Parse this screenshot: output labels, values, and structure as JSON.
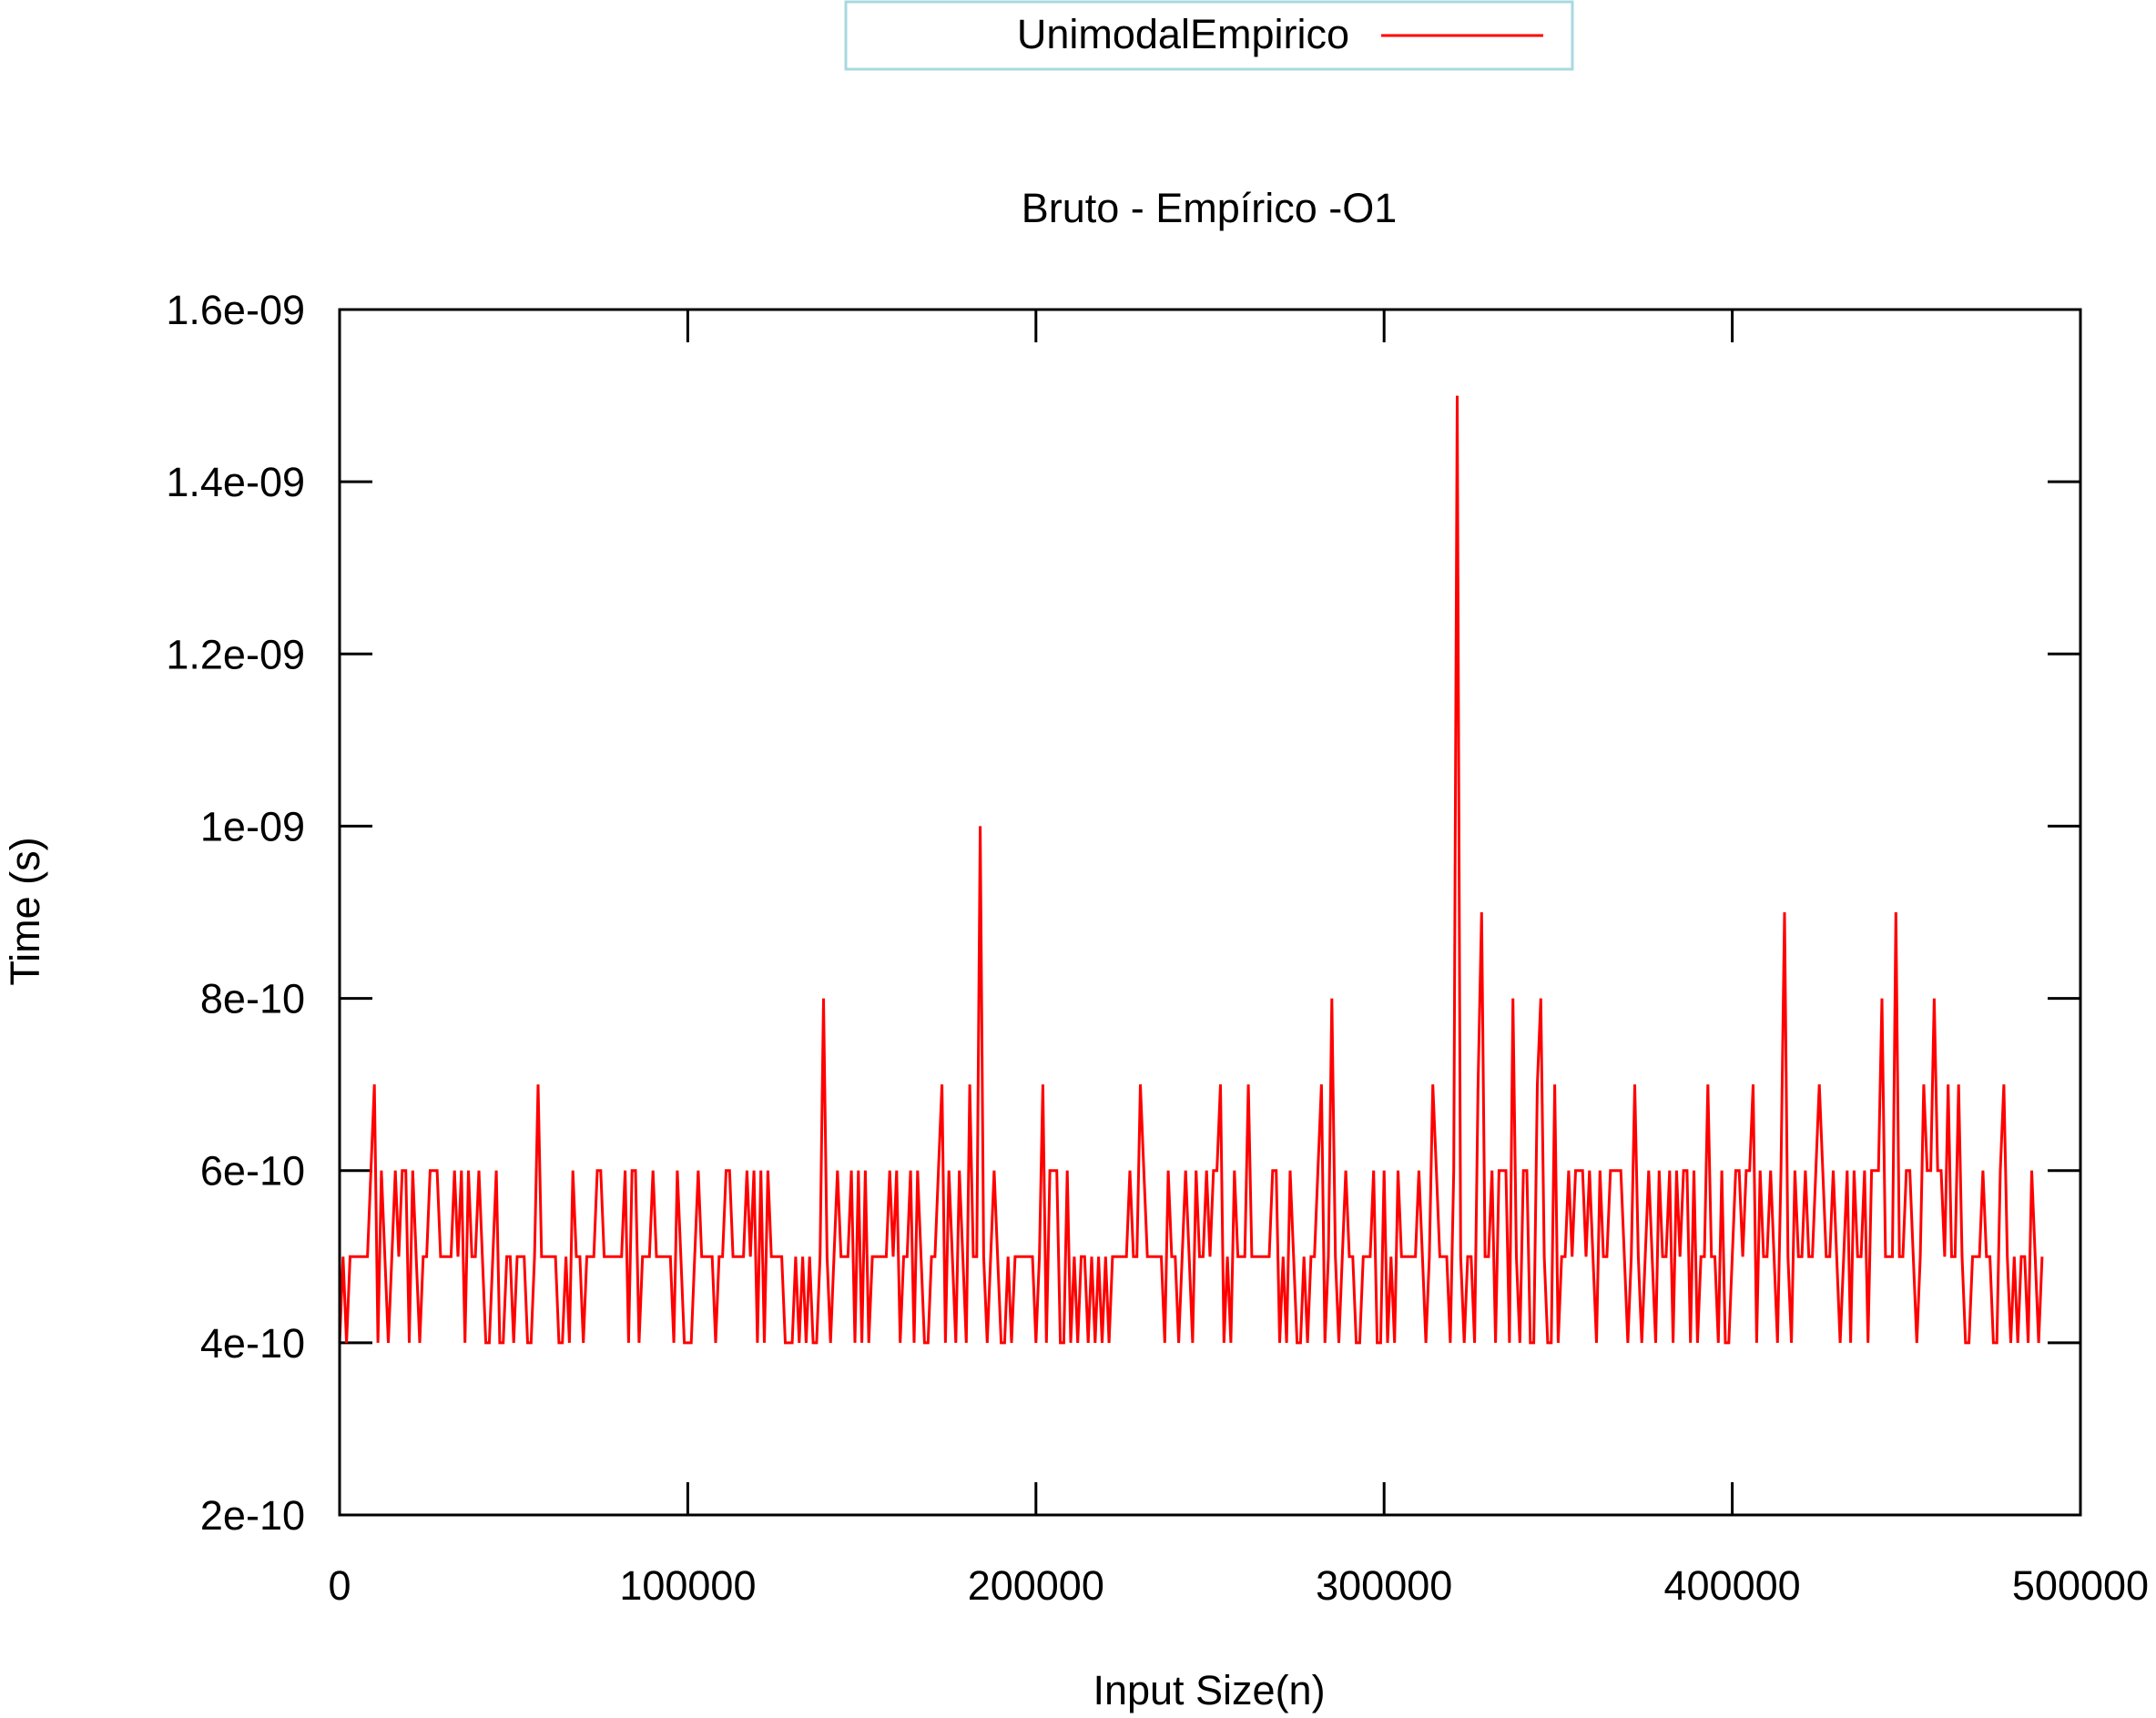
{
  "chart_data": {
    "type": "line",
    "title": "Bruto - Empírico -O1",
    "xlabel": "Input Size(n)",
    "ylabel": "Time (s)",
    "xlim": [
      0,
      500000
    ],
    "ylim": [
      2e-10,
      1.6e-09
    ],
    "xticks": [
      0,
      100000,
      200000,
      300000,
      400000,
      500000
    ],
    "xtick_labels": [
      "0",
      "100000",
      "200000",
      "300000",
      "400000",
      "500000"
    ],
    "yticks": [
      2e-10,
      4e-10,
      6e-10,
      8e-10,
      1e-09,
      1.2e-09,
      1.4e-09,
      1.6e-09
    ],
    "ytick_labels": [
      "2e-10",
      "4e-10",
      "6e-10",
      "8e-10",
      "1e-09",
      "1.2e-09",
      "1.4e-09",
      "1.6e-09"
    ],
    "grid": false,
    "legend_position": "top-center",
    "series": [
      {
        "name": "UnimodalEmpirico",
        "color": "#ff0000",
        "x_start": 0,
        "x_step": 1000,
        "values": [
          4e-10,
          5e-10,
          4e-10,
          5e-10,
          5e-10,
          5e-10,
          5e-10,
          5e-10,
          5e-10,
          6e-10,
          7e-10,
          4e-10,
          6e-10,
          5e-10,
          4e-10,
          5e-10,
          6e-10,
          5e-10,
          6e-10,
          6e-10,
          4e-10,
          6e-10,
          5e-10,
          4e-10,
          5e-10,
          5e-10,
          6e-10,
          6e-10,
          6e-10,
          5e-10,
          5e-10,
          5e-10,
          5e-10,
          6e-10,
          5e-10,
          6e-10,
          4e-10,
          6e-10,
          5e-10,
          5e-10,
          6e-10,
          5e-10,
          4e-10,
          4e-10,
          5e-10,
          6e-10,
          4e-10,
          4e-10,
          5e-10,
          5e-10,
          4e-10,
          5e-10,
          5e-10,
          5e-10,
          4e-10,
          4e-10,
          5e-10,
          7e-10,
          5e-10,
          5e-10,
          5e-10,
          5e-10,
          5e-10,
          4e-10,
          4e-10,
          5e-10,
          4e-10,
          6e-10,
          5e-10,
          5e-10,
          4e-10,
          5e-10,
          5e-10,
          5e-10,
          6e-10,
          6e-10,
          5e-10,
          5e-10,
          5e-10,
          5e-10,
          5e-10,
          5e-10,
          6e-10,
          4e-10,
          6e-10,
          6e-10,
          4e-10,
          5e-10,
          5e-10,
          5e-10,
          6e-10,
          5e-10,
          5e-10,
          5e-10,
          5e-10,
          5e-10,
          4e-10,
          6e-10,
          5e-10,
          4e-10,
          4e-10,
          4e-10,
          5e-10,
          6e-10,
          5e-10,
          5e-10,
          5e-10,
          5e-10,
          4e-10,
          5e-10,
          5e-10,
          6e-10,
          6e-10,
          5e-10,
          5e-10,
          5e-10,
          5e-10,
          6e-10,
          5e-10,
          6e-10,
          4e-10,
          6e-10,
          4e-10,
          6e-10,
          5e-10,
          5e-10,
          5e-10,
          5e-10,
          4e-10,
          4e-10,
          4e-10,
          5e-10,
          4e-10,
          5e-10,
          4e-10,
          5e-10,
          4e-10,
          4e-10,
          5e-10,
          8e-10,
          5e-10,
          4e-10,
          5e-10,
          6e-10,
          5e-10,
          5e-10,
          5e-10,
          6e-10,
          4e-10,
          6e-10,
          4e-10,
          6e-10,
          4e-10,
          5e-10,
          5e-10,
          5e-10,
          5e-10,
          5e-10,
          6e-10,
          5e-10,
          6e-10,
          4e-10,
          5e-10,
          5e-10,
          6e-10,
          4e-10,
          6e-10,
          5e-10,
          4e-10,
          4e-10,
          5e-10,
          5e-10,
          6e-10,
          7e-10,
          4e-10,
          6e-10,
          5e-10,
          4e-10,
          6e-10,
          5e-10,
          4e-10,
          7e-10,
          5e-10,
          5e-10,
          1e-09,
          5e-10,
          4e-10,
          5e-10,
          6e-10,
          5e-10,
          4e-10,
          4e-10,
          5e-10,
          4e-10,
          5e-10,
          5e-10,
          5e-10,
          5e-10,
          5e-10,
          5e-10,
          4e-10,
          5e-10,
          7e-10,
          4e-10,
          6e-10,
          6e-10,
          6e-10,
          4e-10,
          4e-10,
          6e-10,
          4e-10,
          5e-10,
          4e-10,
          5e-10,
          5e-10,
          4e-10,
          5e-10,
          4e-10,
          5e-10,
          4e-10,
          5e-10,
          4e-10,
          5e-10,
          5e-10,
          5e-10,
          5e-10,
          5e-10,
          6e-10,
          5e-10,
          5e-10,
          7e-10,
          6e-10,
          5e-10,
          5e-10,
          5e-10,
          5e-10,
          5e-10,
          4e-10,
          6e-10,
          5e-10,
          5e-10,
          4e-10,
          5e-10,
          6e-10,
          5e-10,
          4e-10,
          6e-10,
          5e-10,
          5e-10,
          6e-10,
          5e-10,
          6e-10,
          6e-10,
          7e-10,
          4e-10,
          5e-10,
          4e-10,
          6e-10,
          5e-10,
          5e-10,
          5e-10,
          7e-10,
          5e-10,
          5e-10,
          5e-10,
          5e-10,
          5e-10,
          5e-10,
          6e-10,
          6e-10,
          4e-10,
          5e-10,
          4e-10,
          6e-10,
          5e-10,
          4e-10,
          4e-10,
          5e-10,
          4e-10,
          5e-10,
          5e-10,
          6e-10,
          7e-10,
          4e-10,
          5e-10,
          8e-10,
          5e-10,
          4e-10,
          5e-10,
          6e-10,
          5e-10,
          5e-10,
          4e-10,
          4e-10,
          5e-10,
          5e-10,
          5e-10,
          6e-10,
          4e-10,
          4e-10,
          6e-10,
          4e-10,
          5e-10,
          4e-10,
          6e-10,
          5e-10,
          5e-10,
          5e-10,
          5e-10,
          5e-10,
          6e-10,
          5e-10,
          4e-10,
          5e-10,
          7e-10,
          6e-10,
          5e-10,
          5e-10,
          5e-10,
          4e-10,
          6e-10,
          1.5e-09,
          5e-10,
          4e-10,
          5e-10,
          5e-10,
          4e-10,
          7e-10,
          9e-10,
          5e-10,
          5e-10,
          6e-10,
          4e-10,
          6e-10,
          6e-10,
          6e-10,
          4e-10,
          8e-10,
          5e-10,
          4e-10,
          6e-10,
          6e-10,
          4e-10,
          4e-10,
          7e-10,
          8e-10,
          5e-10,
          4e-10,
          4e-10,
          7e-10,
          4e-10,
          5e-10,
          5e-10,
          6e-10,
          5e-10,
          6e-10,
          6e-10,
          6e-10,
          5e-10,
          6e-10,
          5e-10,
          4e-10,
          6e-10,
          5e-10,
          5e-10,
          6e-10,
          6e-10,
          6e-10,
          6e-10,
          5e-10,
          4e-10,
          5e-10,
          7e-10,
          5e-10,
          4e-10,
          5e-10,
          6e-10,
          5e-10,
          4e-10,
          6e-10,
          5e-10,
          5e-10,
          6e-10,
          4e-10,
          6e-10,
          5e-10,
          6e-10,
          6e-10,
          4e-10,
          6e-10,
          4e-10,
          5e-10,
          5e-10,
          7e-10,
          5e-10,
          5e-10,
          4e-10,
          6e-10,
          4e-10,
          4e-10,
          5e-10,
          6e-10,
          6e-10,
          5e-10,
          6e-10,
          6e-10,
          7e-10,
          4e-10,
          6e-10,
          5e-10,
          5e-10,
          6e-10,
          5e-10,
          4e-10,
          6e-10,
          9e-10,
          5e-10,
          4e-10,
          6e-10,
          5e-10,
          5e-10,
          6e-10,
          5e-10,
          5e-10,
          6e-10,
          7e-10,
          6e-10,
          5e-10,
          5e-10,
          6e-10,
          5e-10,
          4e-10,
          5e-10,
          6e-10,
          4e-10,
          6e-10,
          5e-10,
          5e-10,
          6e-10,
          4e-10,
          6e-10,
          6e-10,
          6e-10,
          8e-10,
          5e-10,
          5e-10,
          5e-10,
          9e-10,
          5e-10,
          5e-10,
          6e-10,
          6e-10,
          5e-10,
          4e-10,
          5e-10,
          7e-10,
          6e-10,
          6e-10,
          8e-10,
          6e-10,
          6e-10,
          5e-10,
          7e-10,
          5e-10,
          5e-10,
          7e-10,
          5e-10,
          4e-10,
          4e-10,
          5e-10,
          5e-10,
          5e-10,
          6e-10,
          5e-10,
          5e-10,
          4e-10,
          4e-10,
          6e-10,
          7e-10,
          5e-10,
          4e-10,
          5e-10,
          4e-10,
          5e-10,
          5e-10,
          4e-10,
          6e-10,
          5e-10,
          4e-10,
          5e-10
        ]
      }
    ]
  }
}
